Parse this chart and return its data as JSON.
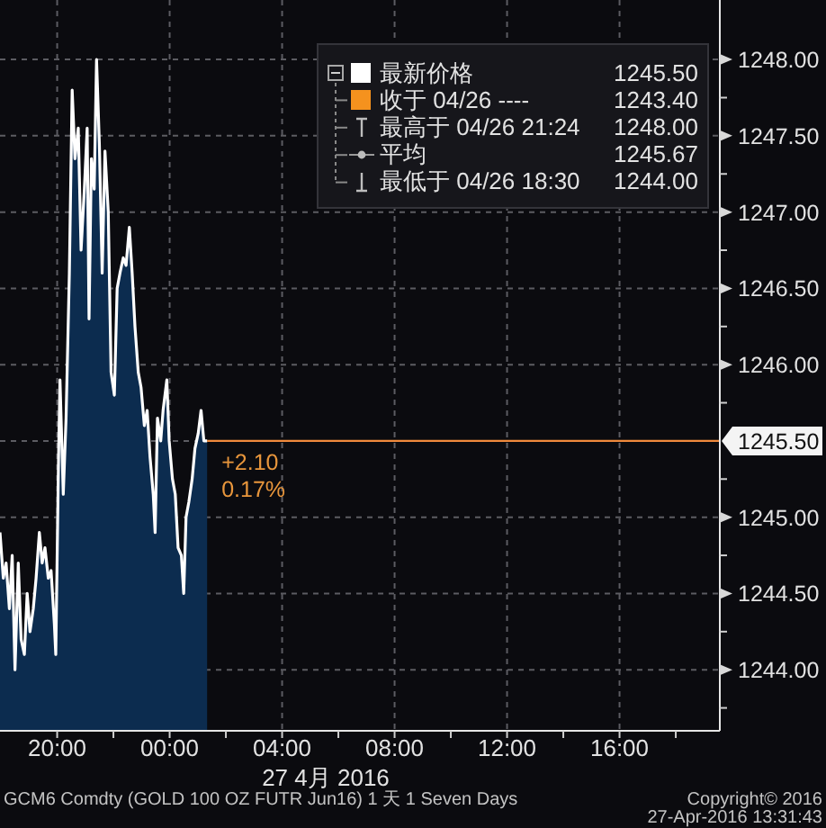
{
  "chart_data": {
    "type": "area",
    "xlabel": "27 4月 2016",
    "annotations": [
      "1245.50",
      "收于 04/26 ----",
      "1243.40",
      "最高于 04/26 21:24",
      "1248.00",
      "平均",
      "1245.67",
      "最低于 04/26 18:30",
      "1244.00",
      "+2.10",
      "0.17%",
      "GCM6 Comdty (GOLD 100 OZ FUTR  Jun16) 1 天 1 Seven Days",
      "Copyright© 2016",
      "27-Apr-2016 13:31:43"
    ],
    "x": [
      "2016-04-26T17:58",
      "2016-04-26T18:05",
      "2016-04-26T18:11",
      "2016-04-26T18:18",
      "2016-04-26T18:24",
      "2016-04-26T18:30",
      "2016-04-26T18:37",
      "2016-04-26T18:43",
      "2016-04-26T18:50",
      "2016-04-26T18:56",
      "2016-04-26T19:02",
      "2016-04-26T19:09",
      "2016-04-26T19:15",
      "2016-04-26T19:22",
      "2016-04-26T19:28",
      "2016-04-26T19:34",
      "2016-04-26T19:41",
      "2016-04-26T19:47",
      "2016-04-26T19:54",
      "2016-04-26T19:57",
      "2016-04-26T20:03",
      "2016-04-26T20:06",
      "2016-04-26T20:13",
      "2016-04-26T20:19",
      "2016-04-26T20:26",
      "2016-04-26T20:32",
      "2016-04-26T20:38",
      "2016-04-26T20:45",
      "2016-04-26T20:51",
      "2016-04-26T20:58",
      "2016-04-26T21:04",
      "2016-04-26T21:08",
      "2016-04-26T21:13",
      "2016-04-26T21:19",
      "2016-04-26T21:24",
      "2016-04-26T21:30",
      "2016-04-26T21:36",
      "2016-04-26T21:42",
      "2016-04-26T21:49",
      "2016-04-26T21:55",
      "2016-04-26T22:02",
      "2016-04-26T22:08",
      "2016-04-26T22:14",
      "2016-04-26T22:21",
      "2016-04-26T22:27",
      "2016-04-26T22:34",
      "2016-04-26T22:40",
      "2016-04-26T22:46",
      "2016-04-26T22:53",
      "2016-04-26T22:59",
      "2016-04-26T23:06",
      "2016-04-26T23:12",
      "2016-04-26T23:18",
      "2016-04-26T23:25",
      "2016-04-26T23:29",
      "2016-04-26T23:34",
      "2016-04-26T23:41",
      "2016-04-26T23:46",
      "2016-04-26T23:54",
      "2016-04-26T23:59",
      "2016-04-27T00:06",
      "2016-04-27T00:12",
      "2016-04-27T00:18",
      "2016-04-27T00:25",
      "2016-04-27T00:30",
      "2016-04-27T00:35",
      "2016-04-27T00:41",
      "2016-04-27T00:48",
      "2016-04-27T00:54",
      "2016-04-27T01:01",
      "2016-04-27T01:07",
      "2016-04-27T01:13",
      "2016-04-27T01:20"
    ],
    "series": [
      {
        "name": "最新价格",
        "color": "#ffffff",
        "values": [
          1244.9,
          1244.6,
          1244.7,
          1244.4,
          1244.75,
          1244.0,
          1244.7,
          1244.2,
          1244.1,
          1244.5,
          1244.25,
          1244.4,
          1244.6,
          1244.9,
          1244.7,
          1244.8,
          1244.6,
          1244.65,
          1244.3,
          1244.1,
          1245.4,
          1245.9,
          1245.15,
          1245.65,
          1246.6,
          1247.8,
          1247.35,
          1247.55,
          1246.75,
          1247.15,
          1247.55,
          1246.3,
          1247.35,
          1247.15,
          1248.0,
          1247.45,
          1246.6,
          1247.4,
          1247.0,
          1245.95,
          1245.8,
          1246.5,
          1246.6,
          1246.7,
          1246.65,
          1246.9,
          1246.6,
          1246.25,
          1245.95,
          1245.85,
          1245.6,
          1245.7,
          1245.4,
          1245.15,
          1244.9,
          1245.65,
          1245.5,
          1245.7,
          1245.9,
          1245.5,
          1245.25,
          1245.15,
          1244.8,
          1244.75,
          1244.5,
          1245.0,
          1245.1,
          1245.25,
          1245.45,
          1245.55,
          1245.7,
          1245.5,
          1245.5
        ]
      }
    ],
    "xlim": [
      "2016-04-26T17:58",
      "2016-04-27T19:34"
    ],
    "xticks": [
      {
        "value": "2016-04-26T20:00",
        "label": "20:00"
      },
      {
        "value": "2016-04-26T22:00",
        "label": null
      },
      {
        "value": "2016-04-27T00:00",
        "label": "00:00"
      },
      {
        "value": "2016-04-27T02:00",
        "label": null
      },
      {
        "value": "2016-04-27T04:00",
        "label": "04:00"
      },
      {
        "value": "2016-04-27T06:00",
        "label": null
      },
      {
        "value": "2016-04-27T08:00",
        "label": "08:00"
      },
      {
        "value": "2016-04-27T10:00",
        "label": null
      },
      {
        "value": "2016-04-27T12:00",
        "label": "12:00"
      },
      {
        "value": "2016-04-27T14:00",
        "label": null
      },
      {
        "value": "2016-04-27T16:00",
        "label": "16:00"
      },
      {
        "value": "2016-04-27T18:00",
        "label": null
      }
    ],
    "ylim": [
      1243.6,
      1248.39
    ],
    "yticks": [
      {
        "value": 1243.75,
        "label": null
      },
      {
        "value": 1244,
        "label": "1244.00"
      },
      {
        "value": 1244.25,
        "label": null
      },
      {
        "value": 1244.5,
        "label": "1244.50"
      },
      {
        "value": 1244.75,
        "label": null
      },
      {
        "value": 1245,
        "label": "1245.00"
      },
      {
        "value": 1245.25,
        "label": null
      },
      {
        "value": 1245.5,
        "label": "1245.50"
      },
      {
        "value": 1245.75,
        "label": null
      },
      {
        "value": 1246,
        "label": "1246.00"
      },
      {
        "value": 1246.25,
        "label": null
      },
      {
        "value": 1246.5,
        "label": "1246.50"
      },
      {
        "value": 1246.75,
        "label": null
      },
      {
        "value": 1247,
        "label": "1247.00"
      },
      {
        "value": 1247.25,
        "label": null
      },
      {
        "value": 1247.5,
        "label": "1247.50"
      },
      {
        "value": 1247.75,
        "label": null
      },
      {
        "value": 1248,
        "label": "1248.00"
      }
    ],
    "ref_lines": [
      {
        "axis": "y",
        "value": 1245.5,
        "color": "#f08a3c"
      }
    ],
    "grid": true,
    "legend": "top right"
  }
}
